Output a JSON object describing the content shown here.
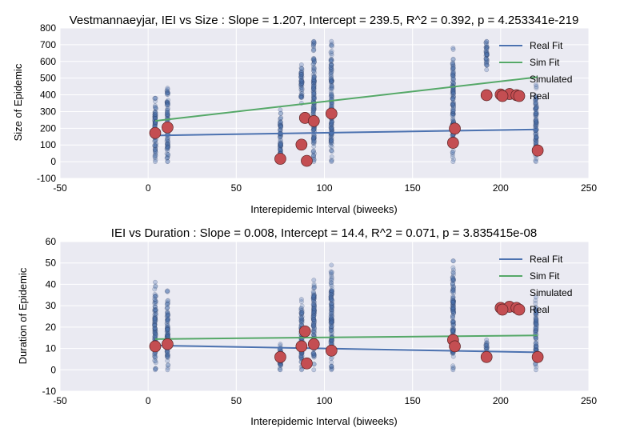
{
  "chart_data": [
    {
      "type": "scatter",
      "title": "Vestmannaeyjar, IEI vs Size : Slope = 1.207, Intercept = 239.5, R^2 = 0.392, p = 4.253341e-219",
      "xlabel": "Interepidemic Interval (biweeks)",
      "ylabel": "Size of Epidemic",
      "xlim": [
        -50,
        250
      ],
      "ylim": [
        -100,
        800
      ],
      "xticks": [
        -50,
        0,
        50,
        100,
        150,
        200,
        250
      ],
      "yticks": [
        -100,
        0,
        100,
        200,
        300,
        400,
        500,
        600,
        700,
        800
      ],
      "grid": true,
      "legend_position": "top-right",
      "legend": [
        "Real Fit",
        "Sim Fit",
        "Simulated",
        "Real"
      ],
      "colors": {
        "real_fit": "#4c72b0",
        "sim_fit": "#55a868",
        "simulated": "#4c72b0",
        "real": "#c44e52"
      },
      "series": [
        {
          "name": "Real Fit",
          "kind": "line",
          "x": [
            4,
            221
          ],
          "y": [
            157,
            193
          ]
        },
        {
          "name": "Sim Fit",
          "kind": "line",
          "x": [
            4,
            221
          ],
          "y": [
            244,
            506
          ]
        },
        {
          "name": "Simulated",
          "kind": "scatter-clusters",
          "clusters": [
            {
              "x": 4,
              "ymin": 0,
              "ymax": 380
            },
            {
              "x": 11,
              "ymin": 0,
              "ymax": 440
            },
            {
              "x": 75,
              "ymin": 0,
              "ymax": 310
            },
            {
              "x": 87,
              "ymin": 350,
              "ymax": 580
            },
            {
              "x": 94,
              "ymin": 0,
              "ymax": 720
            },
            {
              "x": 104,
              "ymin": 0,
              "ymax": 720
            },
            {
              "x": 173,
              "ymin": 0,
              "ymax": 680
            },
            {
              "x": 192,
              "ymin": 550,
              "ymax": 720
            },
            {
              "x": 220,
              "ymin": 0,
              "ymax": 460
            }
          ]
        },
        {
          "name": "Real",
          "kind": "scatter",
          "x": [
            4,
            11,
            75,
            87,
            89,
            90,
            94,
            104,
            173,
            174,
            192,
            200,
            205,
            209,
            221
          ],
          "y": [
            172,
            205,
            17,
            102,
            262,
            5,
            243,
            288,
            113,
            198,
            398,
            402,
            405,
            398,
            67
          ]
        }
      ]
    },
    {
      "type": "scatter",
      "title": "IEI vs Duration : Slope = 0.008, Intercept = 14.4, R^2 = 0.071, p = 3.835415e-08",
      "xlabel": "Interepidemic Interval (biweeks)",
      "ylabel": "Duration of Epidemic",
      "xlim": [
        -50,
        250
      ],
      "ylim": [
        -10,
        60
      ],
      "xticks": [
        -50,
        0,
        50,
        100,
        150,
        200,
        250
      ],
      "yticks": [
        -10,
        0,
        10,
        20,
        30,
        40,
        50,
        60
      ],
      "grid": true,
      "legend_position": "top-right",
      "legend": [
        "Real Fit",
        "Sim Fit",
        "Simulated",
        "Real"
      ],
      "colors": {
        "real_fit": "#4c72b0",
        "sim_fit": "#55a868",
        "simulated": "#4c72b0",
        "real": "#c44e52"
      },
      "series": [
        {
          "name": "Real Fit",
          "kind": "line",
          "x": [
            4,
            221
          ],
          "y": [
            11.4,
            8.2
          ]
        },
        {
          "name": "Sim Fit",
          "kind": "line",
          "x": [
            4,
            221
          ],
          "y": [
            14.4,
            16.1
          ]
        },
        {
          "name": "Simulated",
          "kind": "scatter-clusters",
          "clusters": [
            {
              "x": 4,
              "ymin": 0,
              "ymax": 41
            },
            {
              "x": 11,
              "ymin": 0,
              "ymax": 37
            },
            {
              "x": 75,
              "ymin": 0,
              "ymax": 12
            },
            {
              "x": 87,
              "ymin": 0,
              "ymax": 33
            },
            {
              "x": 94,
              "ymin": 0,
              "ymax": 42
            },
            {
              "x": 104,
              "ymin": 0,
              "ymax": 49
            },
            {
              "x": 173,
              "ymin": 0,
              "ymax": 51
            },
            {
              "x": 192,
              "ymin": 6,
              "ymax": 14
            },
            {
              "x": 220,
              "ymin": 0,
              "ymax": 34
            }
          ]
        },
        {
          "name": "Real",
          "kind": "scatter",
          "x": [
            4,
            11,
            75,
            87,
            89,
            90,
            94,
            104,
            173,
            174,
            192,
            200,
            205,
            209,
            221
          ],
          "y": [
            11,
            12,
            6,
            11,
            18,
            3,
            12,
            9,
            14,
            11,
            6,
            29,
            29.5,
            29,
            6
          ]
        }
      ]
    }
  ]
}
